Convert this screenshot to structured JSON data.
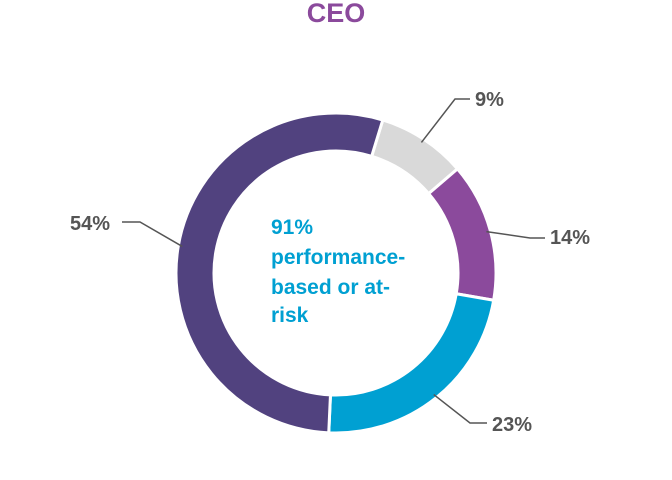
{
  "chart_data": {
    "type": "pie",
    "variant": "donut",
    "title": "CEO",
    "center_label_lines": [
      "91%",
      "performance-",
      "based or at-",
      "risk"
    ],
    "slices": [
      {
        "label": "9%",
        "value": 9,
        "color": "#d9d9d9"
      },
      {
        "label": "14%",
        "value": 14,
        "color": "#8b4a9c"
      },
      {
        "label": "23%",
        "value": 23,
        "color": "#00a0d2"
      },
      {
        "label": "54%",
        "value": 54,
        "color": "#51427f"
      }
    ]
  },
  "colors": {
    "title": "#8b4a9c",
    "center_text": "#00a0d2",
    "labels": "#555555",
    "leader": "#555555"
  }
}
